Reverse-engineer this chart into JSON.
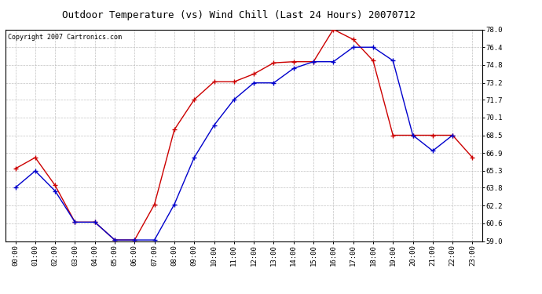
{
  "title": "Outdoor Temperature (vs) Wind Chill (Last 24 Hours) 20070712",
  "copyright_text": "Copyright 2007 Cartronics.com",
  "x_labels": [
    "00:00",
    "01:00",
    "02:00",
    "03:00",
    "04:00",
    "05:00",
    "06:00",
    "07:00",
    "08:00",
    "09:00",
    "10:00",
    "11:00",
    "12:00",
    "13:00",
    "14:00",
    "15:00",
    "16:00",
    "17:00",
    "18:00",
    "19:00",
    "20:00",
    "21:00",
    "22:00",
    "23:00"
  ],
  "temp_red": [
    65.5,
    66.5,
    64.0,
    60.7,
    60.7,
    59.1,
    59.1,
    62.3,
    69.0,
    71.7,
    73.3,
    73.3,
    74.0,
    75.0,
    75.1,
    75.1,
    78.0,
    77.1,
    75.2,
    68.5,
    68.5,
    68.5,
    68.5,
    66.5
  ],
  "wind_blue": [
    63.8,
    65.3,
    63.5,
    60.7,
    60.7,
    59.1,
    59.1,
    59.1,
    62.3,
    66.5,
    69.4,
    71.7,
    73.2,
    73.2,
    74.5,
    75.1,
    75.1,
    76.4,
    76.4,
    75.2,
    68.5,
    67.1,
    68.5,
    null
  ],
  "ylim_min": 59.0,
  "ylim_max": 78.0,
  "yticks": [
    59.0,
    60.6,
    62.2,
    63.8,
    65.3,
    66.9,
    68.5,
    70.1,
    71.7,
    73.2,
    74.8,
    76.4,
    78.0
  ],
  "background_color": "#ffffff",
  "plot_bg_color": "#ffffff",
  "grid_color": "#bbbbbb",
  "red_color": "#cc0000",
  "blue_color": "#0000cc",
  "title_fontsize": 9,
  "copyright_fontsize": 6,
  "tick_fontsize": 6.5
}
